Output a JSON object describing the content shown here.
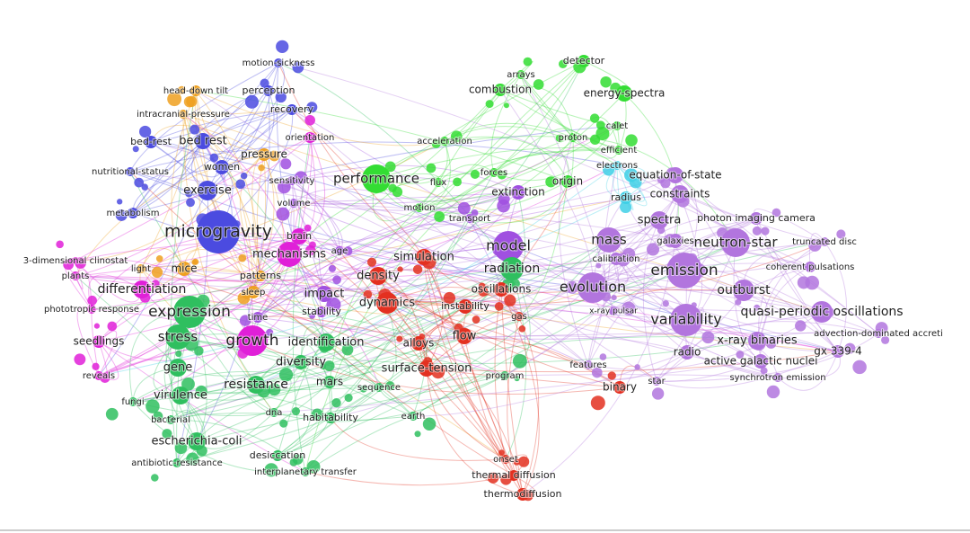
{
  "clusters": [
    {
      "color": "#4b4be0",
      "nodes": [
        "motion-sickness",
        "perception",
        "recovery",
        "bed-rest",
        "bed rest",
        "women",
        "nutritional-status",
        "exercise",
        "metabolism",
        "microgravity"
      ]
    },
    {
      "color": "#eea020",
      "nodes": [
        "head-down tilt",
        "intracranial-pressure",
        "pressure",
        "mice",
        "patterns",
        "sleep",
        "light"
      ]
    },
    {
      "color": "#e020d8",
      "nodes": [
        "orientation",
        "brain",
        "mechanisms",
        "plants",
        "differentiation",
        "phototropic response",
        "growth",
        "seedlings",
        "reveals",
        "3-dimensional clinostat"
      ]
    },
    {
      "color": "#a050e0",
      "nodes": [
        "sensitivity",
        "volume",
        "age",
        "impact",
        "stability",
        "time",
        "model",
        "extinction",
        "transport"
      ]
    },
    {
      "color": "#2fbf5f",
      "nodes": [
        "expression",
        "stress",
        "identification",
        "diversity",
        "gene",
        "resistance",
        "mars",
        "sequence",
        "virulence",
        "fungi",
        "dna",
        "habitability",
        "bacterial",
        "earth",
        "escherichia-coli",
        "desiccation",
        "antibiotic-resistance",
        "interplanetary transfer",
        "radiation",
        "program"
      ]
    },
    {
      "color": "#33dd33",
      "nodes": [
        "performance",
        "arrays",
        "combustion",
        "detector",
        "energy-spectra",
        "calet",
        "proton",
        "efficient",
        "origin",
        "flux",
        "forces",
        "motion",
        "acceleration"
      ]
    },
    {
      "color": "#e33020",
      "nodes": [
        "simulation",
        "density",
        "dynamics",
        "oscillations",
        "instability",
        "gas",
        "flow",
        "alloys",
        "surface-tension",
        "binary",
        "onset",
        "thermal diffusion",
        "thermodiffusion"
      ]
    },
    {
      "color": "#3fd0e6",
      "nodes": [
        "electrons",
        "radius"
      ]
    },
    {
      "color": "#b275de",
      "nodes": [
        "equation-of-state",
        "constraints",
        "spectra",
        "photon imaging camera",
        "mass",
        "galaxies",
        "neutron-star",
        "truncated disc",
        "calibration",
        "emission",
        "coherent pulsations",
        "evolution",
        "outburst",
        "x-ray pulsar",
        "quasi-periodic oscillations",
        "variability",
        "advection-dominated accreti",
        "x-ray binaries",
        "radio",
        "gx 339-4",
        "active galactic nuclei",
        "features",
        "star",
        "synchrotron emission"
      ]
    }
  ]
}
